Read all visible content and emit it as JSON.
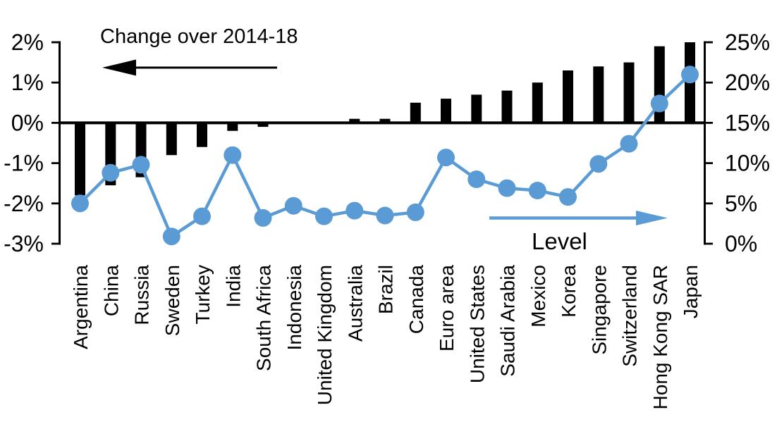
{
  "chart": {
    "title": "Change over 2014-18",
    "level_label": "Level",
    "background": "#ffffff"
  },
  "chart_data": {
    "type": "bar+line combo, dual axis",
    "title": "Change over 2014-18",
    "categories": [
      "Argentina",
      "China",
      "Russia",
      "Sweden",
      "Turkey",
      "India",
      "South Africa",
      "Indonesia",
      "United Kingdom",
      "Australia",
      "Brazil",
      "Canada",
      "Euro area",
      "United States",
      "Saudi Arabia",
      "Mexico",
      "Korea",
      "Singapore",
      "Switzerland",
      "Hong Kong SAR",
      "Japan"
    ],
    "series": [
      {
        "name": "Change over 2014-18",
        "type": "bar",
        "axis": "left",
        "unit": "%",
        "color": "#000000",
        "values": [
          -1.8,
          -1.55,
          -1.35,
          -0.8,
          -0.6,
          -0.2,
          -0.1,
          0,
          0,
          0.1,
          0.1,
          0.5,
          0.6,
          0.7,
          0.8,
          1.0,
          1.3,
          1.4,
          1.5,
          1.9,
          2.0
        ]
      },
      {
        "name": "Level",
        "type": "line",
        "axis": "right",
        "unit": "%",
        "color": "#5b9bd5",
        "values": [
          5.0,
          8.8,
          9.8,
          0.9,
          3.4,
          11.0,
          3.2,
          4.7,
          3.4,
          4.1,
          3.5,
          3.9,
          10.7,
          8.0,
          6.9,
          6.6,
          5.8,
          9.9,
          12.4,
          17.4,
          21.0
        ]
      }
    ],
    "left_axis": {
      "min": -3,
      "max": 2,
      "step": 1,
      "tick_labels": [
        "2%",
        "1%",
        "0%",
        "-1%",
        "-2%",
        "-3%"
      ],
      "annotation_arrow": "points-left"
    },
    "right_axis": {
      "min": 0,
      "max": 25,
      "step": 5,
      "tick_labels": [
        "25%",
        "20%",
        "15%",
        "10%",
        "5%",
        "0%"
      ],
      "annotation_arrow": "points-right"
    },
    "grid": false,
    "legend_position": "in-plot arrow annotations",
    "annotations": {
      "change_label": "Change over 2014-18",
      "level_label": "Level"
    }
  }
}
